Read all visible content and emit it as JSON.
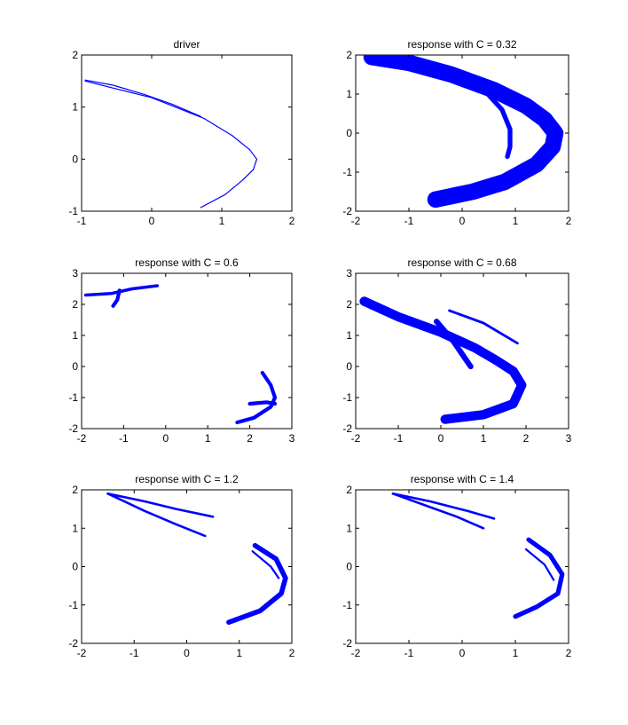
{
  "figure": {
    "background": "#ffffff",
    "series_color": "#0000ff"
  },
  "chart_data": [
    {
      "type": "scatter",
      "title": "driver",
      "xlim": [
        -1,
        2
      ],
      "ylim": [
        -1,
        2
      ],
      "xticks": [
        "-1",
        "0",
        "1",
        "2"
      ],
      "yticks": [
        "-1",
        "0",
        "1",
        "2"
      ],
      "grid": false,
      "series": [
        {
          "kind": "band",
          "points": [
            [
              -0.95,
              1.52
            ],
            [
              -0.55,
              1.42
            ],
            [
              -0.1,
              1.24
            ],
            [
              0.3,
              1.05
            ],
            [
              0.7,
              0.82
            ]
          ],
          "width": 0.02
        },
        {
          "kind": "band",
          "points": [
            [
              -0.95,
              1.5
            ],
            [
              0.0,
              1.18
            ],
            [
              0.75,
              0.78
            ],
            [
              1.15,
              0.45
            ],
            [
              1.4,
              0.18
            ],
            [
              1.5,
              0.0
            ],
            [
              1.45,
              -0.2
            ],
            [
              1.3,
              -0.4
            ],
            [
              1.05,
              -0.68
            ],
            [
              0.7,
              -0.93
            ]
          ],
          "width": 0.02
        }
      ]
    },
    {
      "type": "scatter",
      "title": "response with C = 0.32",
      "xlim": [
        -2,
        2
      ],
      "ylim": [
        -2,
        2
      ],
      "xticks": [
        "-2",
        "-1",
        "0",
        "1",
        "2"
      ],
      "yticks": [
        "-2",
        "-1",
        "0",
        "1",
        "2"
      ],
      "grid": false,
      "series": [
        {
          "kind": "band",
          "points": [
            [
              -1.7,
              1.95
            ],
            [
              -1.0,
              1.8
            ],
            [
              -0.2,
              1.5
            ],
            [
              0.6,
              1.1
            ],
            [
              1.2,
              0.7
            ],
            [
              1.55,
              0.35
            ],
            [
              1.75,
              0.0
            ],
            [
              1.7,
              -0.35
            ],
            [
              1.4,
              -0.8
            ],
            [
              0.8,
              -1.25
            ],
            [
              0.2,
              -1.5
            ],
            [
              -0.5,
              -1.7
            ]
          ],
          "width": 0.42
        },
        {
          "kind": "band",
          "points": [
            [
              0.45,
              1.05
            ],
            [
              0.75,
              0.6
            ],
            [
              0.9,
              0.1
            ],
            [
              0.9,
              -0.35
            ],
            [
              0.85,
              -0.6
            ]
          ],
          "width": 0.12
        }
      ]
    },
    {
      "type": "scatter",
      "title": "response with C = 0.6",
      "xlim": [
        -2,
        3
      ],
      "ylim": [
        -2,
        3
      ],
      "xticks": [
        "-2",
        "-1",
        "0",
        "1",
        "2",
        "3"
      ],
      "yticks": [
        "-2",
        "-1",
        "0",
        "1",
        "2",
        "3"
      ],
      "grid": false,
      "series": [
        {
          "kind": "band",
          "points": [
            [
              -1.9,
              2.3
            ],
            [
              -1.3,
              2.35
            ],
            [
              -0.8,
              2.5
            ],
            [
              -0.2,
              2.6
            ]
          ],
          "width": 0.1
        },
        {
          "kind": "band",
          "points": [
            [
              -1.1,
              2.45
            ],
            [
              -1.15,
              2.15
            ],
            [
              -1.25,
              1.95
            ]
          ],
          "width": 0.12
        },
        {
          "kind": "band",
          "points": [
            [
              1.7,
              -1.8
            ],
            [
              2.1,
              -1.65
            ],
            [
              2.5,
              -1.3
            ],
            [
              2.6,
              -1.0
            ],
            [
              2.5,
              -0.6
            ],
            [
              2.3,
              -0.2
            ]
          ],
          "width": 0.12
        },
        {
          "kind": "band",
          "points": [
            [
              2.0,
              -1.2
            ],
            [
              2.4,
              -1.15
            ],
            [
              2.6,
              -1.2
            ]
          ],
          "width": 0.12
        }
      ]
    },
    {
      "type": "scatter",
      "title": "response with C = 0.68",
      "xlim": [
        -2,
        3
      ],
      "ylim": [
        -2,
        3
      ],
      "xticks": [
        "-2",
        "-1",
        "0",
        "1",
        "2",
        "3"
      ],
      "yticks": [
        "-2",
        "-1",
        "0",
        "1",
        "2",
        "3"
      ],
      "grid": false,
      "series": [
        {
          "kind": "band",
          "points": [
            [
              -1.8,
              2.1
            ],
            [
              -1.0,
              1.6
            ],
            [
              0.0,
              1.1
            ],
            [
              0.8,
              0.6
            ],
            [
              1.3,
              0.2
            ],
            [
              1.7,
              -0.15
            ],
            [
              1.9,
              -0.6
            ],
            [
              1.7,
              -1.2
            ],
            [
              1.0,
              -1.55
            ],
            [
              0.1,
              -1.7
            ]
          ],
          "width": 0.3
        },
        {
          "kind": "band",
          "points": [
            [
              -0.1,
              1.45
            ],
            [
              0.3,
              0.8
            ],
            [
              0.7,
              0.0
            ]
          ],
          "width": 0.18
        },
        {
          "kind": "band",
          "points": [
            [
              0.2,
              1.8
            ],
            [
              1.0,
              1.4
            ],
            [
              1.8,
              0.75
            ]
          ],
          "width": 0.08
        }
      ]
    },
    {
      "type": "scatter",
      "title": "response with C = 1.2",
      "xlim": [
        -2,
        2
      ],
      "ylim": [
        -2,
        2
      ],
      "xticks": [
        "-2",
        "-1",
        "0",
        "1",
        "2"
      ],
      "yticks": [
        "-2",
        "-1",
        "0",
        "1",
        "2"
      ],
      "grid": false,
      "series": [
        {
          "kind": "band",
          "points": [
            [
              -1.5,
              1.9
            ],
            [
              -0.8,
              1.7
            ],
            [
              -0.2,
              1.5
            ],
            [
              0.5,
              1.3
            ]
          ],
          "width": 0.06
        },
        {
          "kind": "band",
          "points": [
            [
              -1.5,
              1.9
            ],
            [
              -0.8,
              1.45
            ],
            [
              -0.2,
              1.1
            ],
            [
              0.35,
              0.8
            ]
          ],
          "width": 0.06
        },
        {
          "kind": "band",
          "points": [
            [
              1.3,
              0.55
            ],
            [
              1.7,
              0.2
            ],
            [
              1.88,
              -0.3
            ],
            [
              1.8,
              -0.7
            ],
            [
              1.4,
              -1.15
            ],
            [
              0.8,
              -1.45
            ]
          ],
          "width": 0.13
        },
        {
          "kind": "band",
          "points": [
            [
              1.25,
              0.4
            ],
            [
              1.6,
              0.0
            ],
            [
              1.75,
              -0.3
            ]
          ],
          "width": 0.05
        }
      ]
    },
    {
      "type": "scatter",
      "title": "response with C = 1.4",
      "xlim": [
        -2,
        2
      ],
      "ylim": [
        -2,
        2
      ],
      "xticks": [
        "-2",
        "-1",
        "0",
        "1",
        "2"
      ],
      "yticks": [
        "-2",
        "-1",
        "0",
        "1",
        "2"
      ],
      "grid": false,
      "series": [
        {
          "kind": "band",
          "points": [
            [
              -1.3,
              1.9
            ],
            [
              -0.6,
              1.7
            ],
            [
              0.1,
              1.45
            ],
            [
              0.6,
              1.25
            ]
          ],
          "width": 0.06
        },
        {
          "kind": "band",
          "points": [
            [
              -1.3,
              1.9
            ],
            [
              -0.6,
              1.55
            ],
            [
              -0.1,
              1.3
            ],
            [
              0.4,
              1.0
            ]
          ],
          "width": 0.06
        },
        {
          "kind": "band",
          "points": [
            [
              1.25,
              0.7
            ],
            [
              1.65,
              0.3
            ],
            [
              1.88,
              -0.2
            ],
            [
              1.8,
              -0.7
            ],
            [
              1.4,
              -1.05
            ],
            [
              1.0,
              -1.3
            ]
          ],
          "width": 0.12
        },
        {
          "kind": "band",
          "points": [
            [
              1.2,
              0.45
            ],
            [
              1.55,
              0.05
            ],
            [
              1.72,
              -0.35
            ]
          ],
          "width": 0.05
        }
      ]
    }
  ]
}
